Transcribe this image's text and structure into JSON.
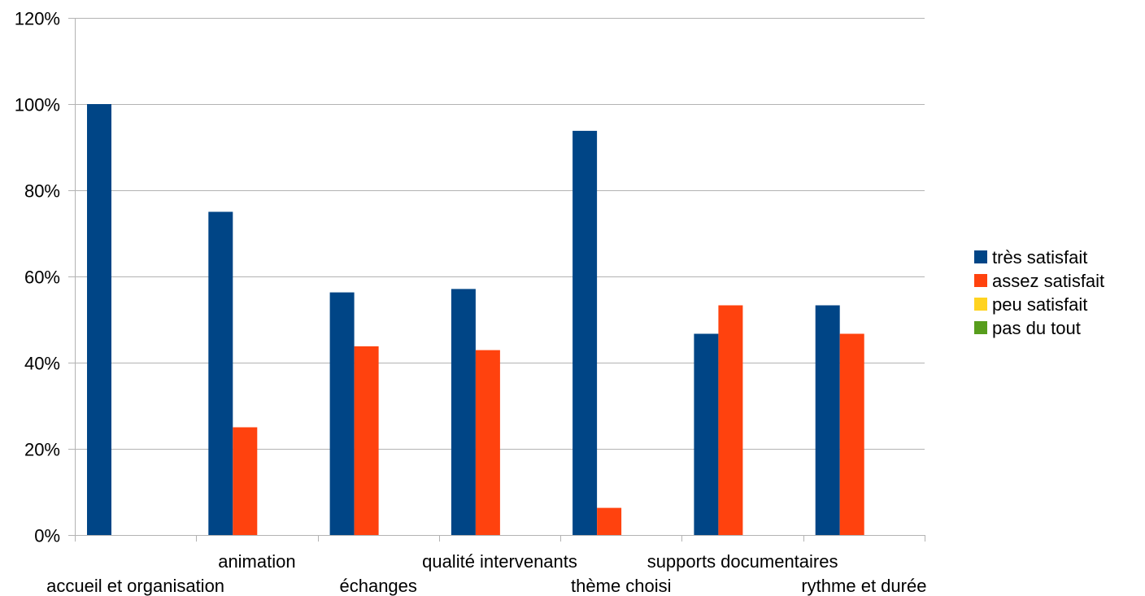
{
  "chart_data": {
    "type": "bar",
    "title": "",
    "xlabel": "",
    "ylabel": "",
    "categories": [
      "accueil et organisation",
      "animation",
      "échanges",
      "qualité intervenants",
      "thème choisi",
      "supports documentaires",
      "rythme et durée"
    ],
    "series": [
      {
        "name": "très satisfait",
        "color": "#004586",
        "values": [
          100,
          75,
          56.3,
          57.1,
          93.8,
          46.7,
          53.3
        ]
      },
      {
        "name": "assez satisfait",
        "color": "#ff420e",
        "values": [
          0,
          25,
          43.8,
          42.9,
          6.3,
          53.3,
          46.7
        ]
      },
      {
        "name": "peu satisfait",
        "color": "#ffd320",
        "values": [
          0,
          0,
          0,
          0,
          0,
          0,
          0
        ]
      },
      {
        "name": "pas du tout",
        "color": "#579d1c",
        "values": [
          0,
          0,
          0,
          0,
          0,
          0,
          0
        ]
      }
    ],
    "ylim": [
      0,
      120
    ],
    "yticks": [
      "0%",
      "20%",
      "40%",
      "60%",
      "80%",
      "100%",
      "120%"
    ],
    "grid": true,
    "legend_position": "right"
  }
}
